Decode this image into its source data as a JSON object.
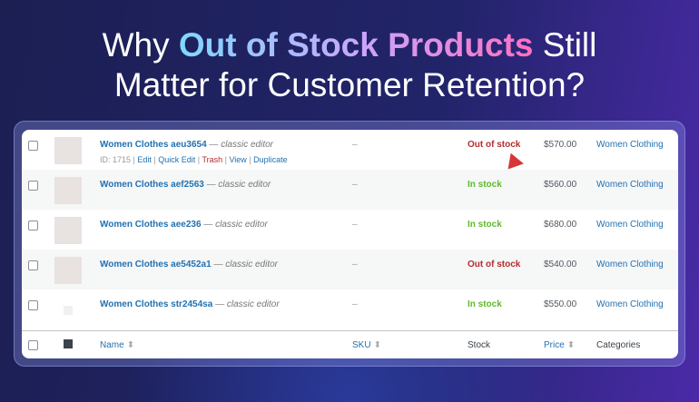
{
  "headline": {
    "pre": "Why ",
    "highlight": "Out of Stock Products",
    "post": " Still",
    "line2": "Matter for Customer Retention?"
  },
  "colors": {
    "out_of_stock": "#b32d2e",
    "in_stock": "#5fb82c",
    "link": "#2271b1"
  },
  "rows": [
    {
      "name": "Women Clothes aeu3654",
      "editor": "— classic editor",
      "sku": "–",
      "stock": "Out of stock",
      "in_stock": false,
      "price": "$570.00",
      "category": "Women Clothing",
      "actions": {
        "id": "ID: 1715",
        "edit": "Edit",
        "quick_edit": "Quick Edit",
        "trash": "Trash",
        "view": "View",
        "duplicate": "Duplicate"
      }
    },
    {
      "name": "Women Clothes aef2563",
      "editor": "— classic editor",
      "sku": "–",
      "stock": "In stock",
      "in_stock": true,
      "price": "$560.00",
      "category": "Women Clothing"
    },
    {
      "name": "Women Clothes aee236",
      "editor": "— classic editor",
      "sku": "–",
      "stock": "In stock",
      "in_stock": true,
      "price": "$680.00",
      "category": "Women Clothing"
    },
    {
      "name": "Women Clothes ae5452a1",
      "editor": "— classic editor",
      "sku": "–",
      "stock": "Out of stock",
      "in_stock": false,
      "price": "$540.00",
      "category": "Women Clothing"
    },
    {
      "name": "Women Clothes str2454sa",
      "editor": "— classic editor",
      "sku": "–",
      "stock": "In stock",
      "in_stock": true,
      "price": "$550.00",
      "category": "Women Clothing"
    }
  ],
  "columns": {
    "name": "Name",
    "sku": "SKU",
    "stock": "Stock",
    "price": "Price",
    "categories": "Categories",
    "sort_icon": "sort-arrows",
    "image_icon": "image"
  }
}
